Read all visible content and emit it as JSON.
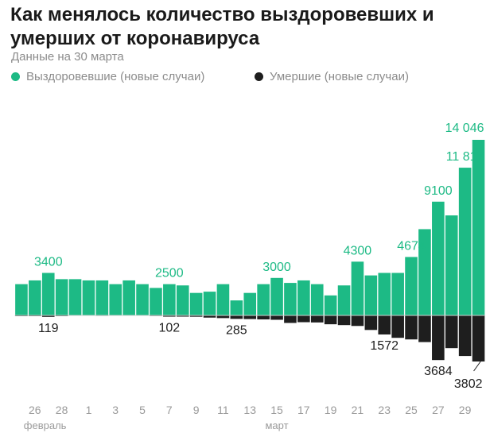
{
  "title": "Как менялось количество выздоровевших и умерших от коронавируса",
  "subtitle": "Данные на 30 марта",
  "legend": {
    "recovered": "Выздоровевшие (новые случаи)",
    "deaths": "Умершие (новые случаи)"
  },
  "colors": {
    "recovered": "#1dba85",
    "deaths": "#1e1e1e",
    "labels": "#1dba85",
    "axis": "#9a9a9a"
  },
  "chart_data": {
    "type": "bar",
    "title": "Как менялось количество выздоровевших и умерших от коронавируса",
    "subtitle": "Данные на 30 марта",
    "x": [
      "25.02",
      "26.02",
      "27.02",
      "28.02",
      "29.02",
      "01.03",
      "02.03",
      "03.03",
      "04.03",
      "05.03",
      "06.03",
      "07.03",
      "08.03",
      "09.03",
      "10.03",
      "11.03",
      "12.03",
      "13.03",
      "14.03",
      "15.03",
      "16.03",
      "17.03",
      "18.03",
      "19.03",
      "20.03",
      "21.03",
      "22.03",
      "23.03",
      "24.03",
      "25.03",
      "26.03",
      "27.03",
      "28.03",
      "29.03",
      "30.03"
    ],
    "x_tick_labels": [
      "26",
      "28",
      "1",
      "3",
      "5",
      "7",
      "9",
      "11",
      "13",
      "15",
      "17",
      "19",
      "21",
      "23",
      "25",
      "27",
      "29"
    ],
    "x_month_labels": [
      {
        "label": "февраль",
        "at": "26.02"
      },
      {
        "label": "март",
        "at": "15.03"
      }
    ],
    "series": [
      {
        "name": "Выздоровевшие (новые случаи)",
        "color": "#1dba85",
        "values": [
          2500,
          2800,
          3400,
          2900,
          2900,
          2800,
          2800,
          2500,
          2800,
          2500,
          2200,
          2500,
          2400,
          1800,
          1900,
          2500,
          1200,
          1800,
          2500,
          3000,
          2600,
          2800,
          2500,
          1600,
          2400,
          4300,
          3200,
          3400,
          3400,
          4674,
          6900,
          9100,
          8000,
          11817,
          14046
        ]
      },
      {
        "name": "Умершие (новые случаи)",
        "color": "#1e1e1e",
        "values": [
          -60,
          -60,
          -119,
          -60,
          -30,
          -30,
          -40,
          -30,
          -30,
          -30,
          -50,
          -102,
          -100,
          -110,
          -180,
          -220,
          -285,
          -300,
          -330,
          -360,
          -620,
          -560,
          -580,
          -730,
          -800,
          -870,
          -1200,
          -1572,
          -1850,
          -1980,
          -2200,
          -3684,
          -2700,
          -3350,
          -3802
        ]
      }
    ],
    "data_labels": [
      {
        "series": 0,
        "index": 2,
        "text": "3400"
      },
      {
        "series": 0,
        "index": 11,
        "text": "2500"
      },
      {
        "series": 0,
        "index": 19,
        "text": "3000"
      },
      {
        "series": 0,
        "index": 25,
        "text": "4300"
      },
      {
        "series": 0,
        "index": 29,
        "text": "4674"
      },
      {
        "series": 0,
        "index": 31,
        "text": "9100"
      },
      {
        "series": 0,
        "index": 33,
        "text": "11 817"
      },
      {
        "series": 0,
        "index": 34,
        "text": "14 046"
      },
      {
        "series": 1,
        "index": 2,
        "text": "119"
      },
      {
        "series": 1,
        "index": 11,
        "text": "102"
      },
      {
        "series": 1,
        "index": 16,
        "text": "285"
      },
      {
        "series": 1,
        "index": 27,
        "text": "1572"
      },
      {
        "series": 1,
        "index": 31,
        "text": "3684"
      },
      {
        "series": 1,
        "index": 34,
        "text": "3802"
      }
    ],
    "ylim": [
      -4500,
      14500
    ],
    "grid": false,
    "legend_position": "top-left"
  }
}
